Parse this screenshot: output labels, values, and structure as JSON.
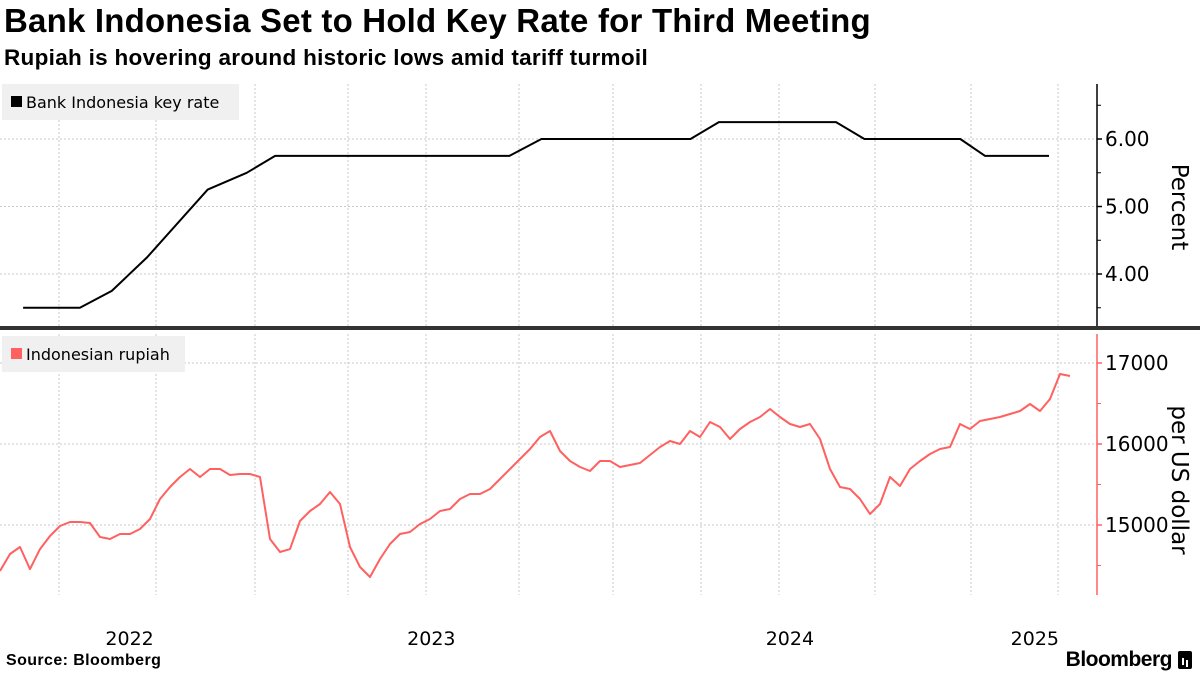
{
  "title": "Bank Indonesia Set to Hold Key Rate for Third Meeting",
  "subtitle": "Rupiah is hovering around historic lows amid tariff turmoil",
  "source": "Source: Bloomberg",
  "logo": "Bloomberg",
  "colors": {
    "rate": "#000000",
    "rupiah": "#ff6060",
    "grid": "#c8c8c8",
    "legend_bg": "#f0f0f0",
    "separator": "#333333"
  },
  "chart_data": [
    {
      "type": "line",
      "title": "Bank Indonesia key rate",
      "legend": "Bank Indonesia key rate",
      "legend_placement": "top-left",
      "ylabel": "Percent",
      "ylim": [
        3.3,
        6.8
      ],
      "yticks": [
        "4.00",
        "5.00",
        "6.00"
      ],
      "ytick_values": [
        4,
        5,
        6
      ],
      "grid": true,
      "x_unit": "decimal year",
      "x": [
        2022.33,
        2022.49,
        2022.58,
        2022.68,
        2022.85,
        2022.96,
        2023.04,
        2023.7,
        2023.79,
        2024.21,
        2024.29,
        2024.62,
        2024.7,
        2024.97,
        2025.04,
        2025.22
      ],
      "y": [
        3.5,
        3.5,
        3.75,
        4.25,
        5.25,
        5.5,
        5.75,
        5.75,
        6.0,
        6.0,
        6.25,
        6.25,
        6.0,
        6.0,
        5.75,
        5.75
      ]
    },
    {
      "type": "line",
      "title": "Indonesian rupiah",
      "legend": "Indonesian rupiah",
      "legend_placement": "top-left",
      "ylabel": "per US dollar",
      "ylim": [
        14200,
        17300
      ],
      "yticks": [
        "15000",
        "16000",
        "17000"
      ],
      "ytick_values": [
        15000,
        16000,
        17000
      ],
      "grid": true,
      "x_unit": "decimal year",
      "x_start": 2022.265,
      "x_step": 0.02817,
      "y": [
        14432,
        14642,
        14728,
        14456,
        14703,
        14864,
        14988,
        15037,
        15037,
        15025,
        14852,
        14827,
        14889,
        14889,
        14950,
        15074,
        15321,
        15469,
        15593,
        15691,
        15593,
        15691,
        15691,
        15617,
        15630,
        15630,
        15593,
        14827,
        14667,
        14703,
        15049,
        15173,
        15259,
        15407,
        15259,
        14728,
        14481,
        14358,
        14580,
        14765,
        14889,
        14913,
        15012,
        15074,
        15173,
        15198,
        15321,
        15383,
        15383,
        15444,
        15568,
        15691,
        15815,
        15938,
        16086,
        16160,
        15914,
        15790,
        15716,
        15667,
        15790,
        15790,
        15716,
        15741,
        15765,
        15864,
        15963,
        16037,
        16000,
        16160,
        16086,
        16272,
        16210,
        16062,
        16185,
        16272,
        16333,
        16432,
        16333,
        16247,
        16210,
        16247,
        16062,
        15691,
        15469,
        15444,
        15321,
        15136,
        15259,
        15593,
        15482,
        15691,
        15790,
        15876,
        15938,
        15963,
        16247,
        16185,
        16284,
        16309,
        16333,
        16370,
        16407,
        16494,
        16407,
        16556,
        16864,
        16840
      ]
    }
  ],
  "xaxis": {
    "ticks": [
      {
        "label": "2022",
        "t": 2022.63
      },
      {
        "label": "2023",
        "t": 2023.48
      },
      {
        "label": "2024",
        "t": 2024.49
      },
      {
        "label": "2025",
        "t": 2025.18
      }
    ]
  }
}
